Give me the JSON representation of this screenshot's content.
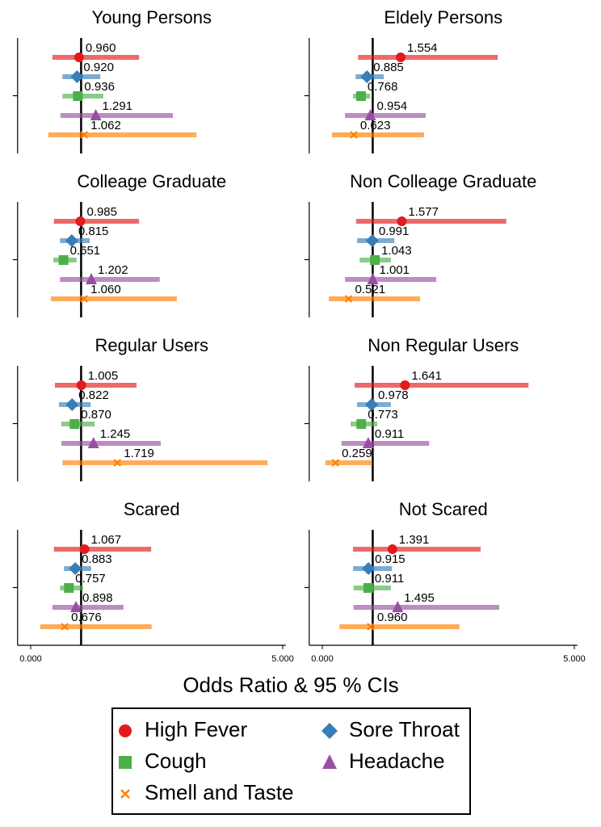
{
  "chart_data": {
    "type": "forest",
    "xlabel": "Odds Ratio & 95 % CIs",
    "xlim": [
      -0.26,
      5.06
    ],
    "xticks": [
      {
        "value": 0,
        "label": "0.000"
      },
      {
        "value": 5,
        "label": "5.000"
      }
    ],
    "refline": 1,
    "series": [
      {
        "name": "High Fever",
        "color": "#e41a1c",
        "marker": "circle"
      },
      {
        "name": "Sore Throat",
        "color": "#377eb8",
        "marker": "diamond"
      },
      {
        "name": "Cough",
        "color": "#4daf4a",
        "marker": "square"
      },
      {
        "name": "Headache",
        "color": "#984ea3",
        "marker": "triangle"
      },
      {
        "name": "Smell and Taste",
        "color": "#ff7f00",
        "marker": "x"
      }
    ],
    "panels": [
      {
        "title": "Young Persons",
        "values": [
          0.96,
          0.92,
          0.936,
          1.291,
          1.062
        ],
        "value_labels": [
          "0.960",
          "0.920",
          "0.936",
          "1.291",
          "1.062"
        ],
        "lower": [
          0.43,
          0.63,
          0.63,
          0.59,
          0.35
        ],
        "upper": [
          2.15,
          1.38,
          1.44,
          2.82,
          3.29
        ]
      },
      {
        "title": "Eldely Persons",
        "values": [
          1.554,
          0.885,
          0.768,
          0.954,
          0.623
        ],
        "value_labels": [
          "1.554",
          "0.885",
          "0.768",
          "0.954",
          "0.623"
        ],
        "lower": [
          0.71,
          0.66,
          0.61,
          0.45,
          0.19
        ],
        "upper": [
          3.48,
          1.22,
          0.95,
          2.05,
          2.02
        ]
      },
      {
        "title": "Colleage Graduate",
        "values": [
          0.985,
          0.815,
          0.651,
          1.202,
          1.06
        ],
        "value_labels": [
          "0.985",
          "0.815",
          "0.651",
          "1.202",
          "1.060"
        ],
        "lower": [
          0.46,
          0.58,
          0.45,
          0.58,
          0.4
        ],
        "upper": [
          2.15,
          1.17,
          0.91,
          2.56,
          2.9
        ]
      },
      {
        "title": "Non Colleage Graduate",
        "values": [
          1.577,
          0.991,
          1.043,
          1.001,
          0.521
        ],
        "value_labels": [
          "1.577",
          "0.991",
          "1.043",
          "1.001",
          "0.521"
        ],
        "lower": [
          0.67,
          0.69,
          0.74,
          0.45,
          0.13
        ],
        "upper": [
          3.65,
          1.43,
          1.36,
          2.26,
          1.94
        ]
      },
      {
        "title": "Regular Users",
        "values": [
          1.005,
          0.822,
          0.87,
          1.245,
          1.719
        ],
        "value_labels": [
          "1.005",
          "0.822",
          "0.870",
          "1.245",
          "1.719"
        ],
        "lower": [
          0.48,
          0.56,
          0.61,
          0.61,
          0.63
        ],
        "upper": [
          2.1,
          1.19,
          1.27,
          2.58,
          4.7
        ]
      },
      {
        "title": "Non Regular  Users",
        "values": [
          1.641,
          0.978,
          0.773,
          0.911,
          0.259
        ],
        "value_labels": [
          "1.641",
          "0.978",
          "0.773",
          "0.911",
          "0.259"
        ],
        "lower": [
          0.64,
          0.69,
          0.56,
          0.38,
          0.06
        ],
        "upper": [
          4.09,
          1.36,
          1.09,
          2.12,
          0.99
        ]
      },
      {
        "title": "Scared",
        "values": [
          1.067,
          0.883,
          0.757,
          0.898,
          0.676
        ],
        "value_labels": [
          "1.067",
          "0.883",
          "0.757",
          "0.898",
          "0.676"
        ],
        "lower": [
          0.46,
          0.66,
          0.58,
          0.43,
          0.19
        ],
        "upper": [
          2.39,
          1.2,
          1.04,
          1.84,
          2.4
        ]
      },
      {
        "title": "Not Scared",
        "values": [
          1.391,
          0.915,
          0.911,
          1.495,
          0.96
        ],
        "value_labels": [
          "1.391",
          "0.915",
          "0.911",
          "1.495",
          "0.960"
        ],
        "lower": [
          0.61,
          0.61,
          0.62,
          0.62,
          0.34
        ],
        "upper": [
          3.14,
          1.38,
          1.36,
          3.51,
          2.72
        ]
      }
    ]
  }
}
